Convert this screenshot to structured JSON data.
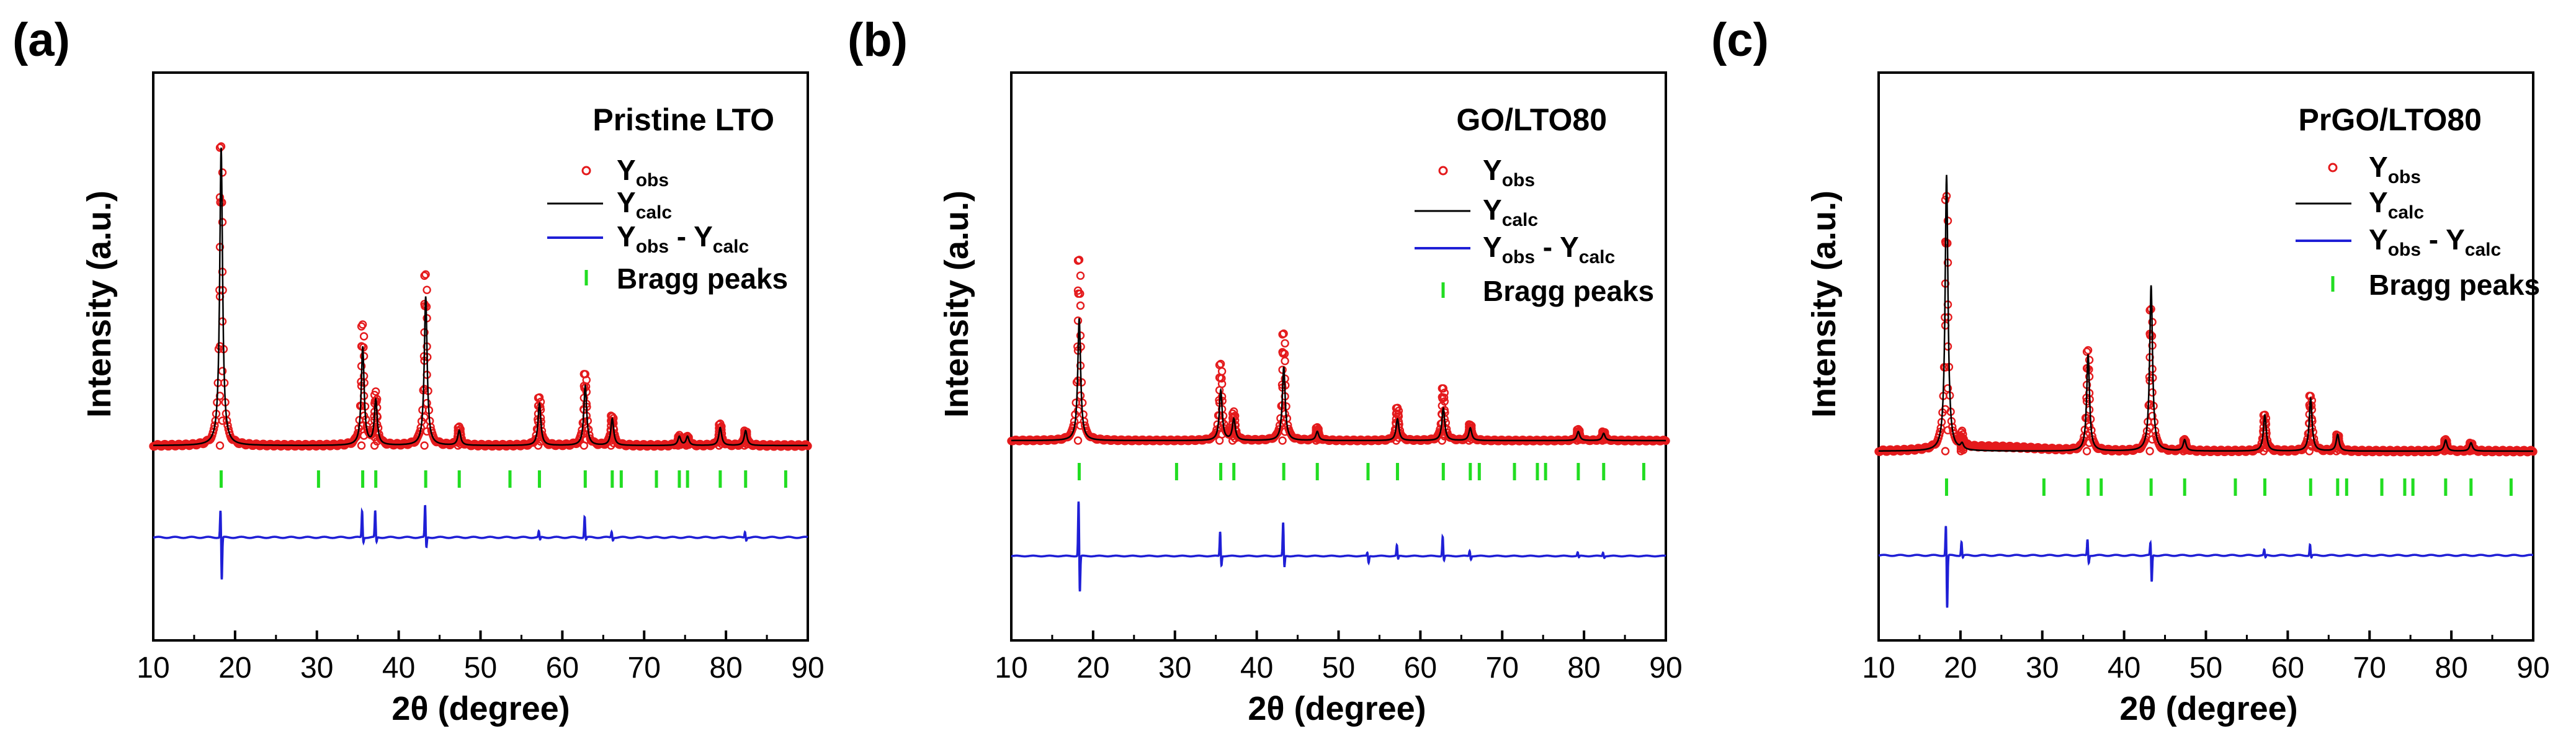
{
  "figure": {
    "x_label": "2θ (degree)",
    "y_label": "Intensity (a.u.)",
    "legend_labels": {
      "obs": "Y",
      "obs_sub": "obs",
      "calc": "Y",
      "calc_sub": "calc",
      "diff": "Y",
      "diff_sub1": "obs",
      "diff_mid": " - Y",
      "diff_sub2": "calc",
      "bragg": "Bragg peaks"
    },
    "colors": {
      "observed": "#e41a1c",
      "calculated": "#000000",
      "difference": "#1f1fd6",
      "bragg": "#22dd22",
      "axis": "#000000"
    }
  },
  "chart_data": [
    {
      "type": "scatter",
      "panel_label": "(a)",
      "sample": "Pristine LTO",
      "xlim": [
        10,
        90
      ],
      "xticks": [
        10,
        20,
        30,
        40,
        50,
        60,
        70,
        80,
        90
      ],
      "yticks_shown": false,
      "units": "intensity normalized to strongest peak = 1.0; baseline = 0",
      "peaks": [
        {
          "two_theta": 18.3,
          "obs": 1.0,
          "calc": 1.0
        },
        {
          "two_theta": 35.6,
          "obs": 0.4,
          "calc": 0.33
        },
        {
          "two_theta": 37.2,
          "obs": 0.17,
          "calc": 0.15
        },
        {
          "two_theta": 43.3,
          "obs": 0.57,
          "calc": 0.5
        },
        {
          "two_theta": 47.4,
          "obs": 0.06,
          "calc": 0.05
        },
        {
          "two_theta": 57.2,
          "obs": 0.16,
          "calc": 0.14
        },
        {
          "two_theta": 62.8,
          "obs": 0.24,
          "calc": 0.2
        },
        {
          "two_theta": 66.1,
          "obs": 0.1,
          "calc": 0.09
        },
        {
          "two_theta": 74.3,
          "obs": 0.03,
          "calc": 0.03
        },
        {
          "two_theta": 75.3,
          "obs": 0.03,
          "calc": 0.03
        },
        {
          "two_theta": 79.3,
          "obs": 0.07,
          "calc": 0.06
        },
        {
          "two_theta": 82.4,
          "obs": 0.05,
          "calc": 0.05
        }
      ],
      "bragg_positions": [
        18.3,
        30.2,
        35.6,
        37.2,
        43.3,
        47.4,
        53.6,
        57.2,
        62.8,
        66.1,
        67.2,
        71.5,
        74.3,
        75.3,
        79.3,
        82.4,
        87.3
      ],
      "difference_offset": -0.3,
      "difference_spikes": [
        {
          "two_theta": 18.3,
          "up": 0.1,
          "down": 0.15
        },
        {
          "two_theta": 35.6,
          "up": 0.09,
          "down": 0.02
        },
        {
          "two_theta": 37.2,
          "up": 0.09,
          "down": 0.02
        },
        {
          "two_theta": 43.3,
          "up": 0.11,
          "down": 0.04
        },
        {
          "two_theta": 57.2,
          "up": 0.02,
          "down": 0.01
        },
        {
          "two_theta": 62.8,
          "up": 0.07,
          "down": 0.01
        },
        {
          "two_theta": 66.1,
          "up": 0.02,
          "down": 0.01
        },
        {
          "two_theta": 82.4,
          "up": 0.02,
          "down": 0.01
        }
      ]
    },
    {
      "type": "scatter",
      "panel_label": "(b)",
      "sample": "GO/LTO80",
      "xlim": [
        10,
        90
      ],
      "xticks": [
        10,
        20,
        30,
        40,
        50,
        60,
        70,
        80,
        90
      ],
      "yticks_shown": false,
      "units": "intensity normalized to strongest peak = 1.0; baseline = 0",
      "peaks": [
        {
          "two_theta": 18.3,
          "obs": 1.0,
          "calc": 0.68
        },
        {
          "two_theta": 35.6,
          "obs": 0.42,
          "calc": 0.28
        },
        {
          "two_theta": 37.2,
          "obs": 0.15,
          "calc": 0.12
        },
        {
          "two_theta": 43.3,
          "obs": 0.59,
          "calc": 0.41
        },
        {
          "two_theta": 47.4,
          "obs": 0.07,
          "calc": 0.05
        },
        {
          "two_theta": 57.2,
          "obs": 0.18,
          "calc": 0.12
        },
        {
          "two_theta": 62.8,
          "obs": 0.29,
          "calc": 0.18
        },
        {
          "two_theta": 66.1,
          "obs": 0.09,
          "calc": 0.07
        },
        {
          "two_theta": 79.3,
          "obs": 0.06,
          "calc": 0.05
        },
        {
          "two_theta": 82.4,
          "obs": 0.05,
          "calc": 0.04
        }
      ],
      "bragg_positions": [
        18.3,
        30.2,
        35.6,
        37.2,
        43.3,
        47.4,
        53.6,
        57.2,
        62.8,
        66.1,
        67.2,
        71.5,
        74.3,
        75.3,
        79.3,
        82.4,
        87.3
      ],
      "difference_offset": -0.62,
      "difference_spikes": [
        {
          "two_theta": 18.3,
          "up": 0.32,
          "down": 0.22
        },
        {
          "two_theta": 35.6,
          "up": 0.14,
          "down": 0.06
        },
        {
          "two_theta": 43.3,
          "up": 0.19,
          "down": 0.07
        },
        {
          "two_theta": 53.6,
          "up": 0.02,
          "down": 0.04
        },
        {
          "two_theta": 57.2,
          "up": 0.06,
          "down": 0.02
        },
        {
          "two_theta": 62.8,
          "up": 0.11,
          "down": 0.03
        },
        {
          "two_theta": 66.1,
          "up": 0.03,
          "down": 0.02
        },
        {
          "two_theta": 79.3,
          "up": 0.02,
          "down": 0.01
        },
        {
          "two_theta": 82.4,
          "up": 0.02,
          "down": 0.01
        }
      ]
    },
    {
      "type": "scatter",
      "panel_label": "(c)",
      "sample": "PrGO/LTO80",
      "xlim": [
        10,
        90
      ],
      "xticks": [
        10,
        20,
        30,
        40,
        50,
        60,
        70,
        80,
        90
      ],
      "yticks_shown": false,
      "units": "intensity normalized to strongest peak = 1.0; baseline = 0",
      "peaks": [
        {
          "two_theta": 18.3,
          "obs": 0.91,
          "calc": 1.0
        },
        {
          "two_theta": 20.2,
          "obs": 0.05,
          "calc": 0.02
        },
        {
          "two_theta": 35.6,
          "obs": 0.36,
          "calc": 0.35
        },
        {
          "two_theta": 43.3,
          "obs": 0.51,
          "calc": 0.6
        },
        {
          "two_theta": 47.4,
          "obs": 0.04,
          "calc": 0.04
        },
        {
          "two_theta": 57.2,
          "obs": 0.13,
          "calc": 0.13
        },
        {
          "two_theta": 62.8,
          "obs": 0.2,
          "calc": 0.19
        },
        {
          "two_theta": 66.1,
          "obs": 0.06,
          "calc": 0.06
        },
        {
          "two_theta": 79.3,
          "obs": 0.04,
          "calc": 0.04
        },
        {
          "two_theta": 82.4,
          "obs": 0.03,
          "calc": 0.03
        }
      ],
      "bragg_positions": [
        18.3,
        30.2,
        35.6,
        37.2,
        43.3,
        47.4,
        53.6,
        57.2,
        62.8,
        66.1,
        67.2,
        71.5,
        74.3,
        75.3,
        79.3,
        82.4,
        87.3
      ],
      "difference_offset": -0.4,
      "difference_spikes": [
        {
          "two_theta": 18.3,
          "up": 0.12,
          "down": 0.2
        },
        {
          "two_theta": 20.2,
          "up": 0.05,
          "down": 0.01
        },
        {
          "two_theta": 35.6,
          "up": 0.06,
          "down": 0.03
        },
        {
          "two_theta": 43.3,
          "up": 0.05,
          "down": 0.1
        },
        {
          "two_theta": 57.2,
          "up": 0.02,
          "down": 0.01
        },
        {
          "two_theta": 62.8,
          "up": 0.04,
          "down": 0.01
        }
      ]
    }
  ]
}
